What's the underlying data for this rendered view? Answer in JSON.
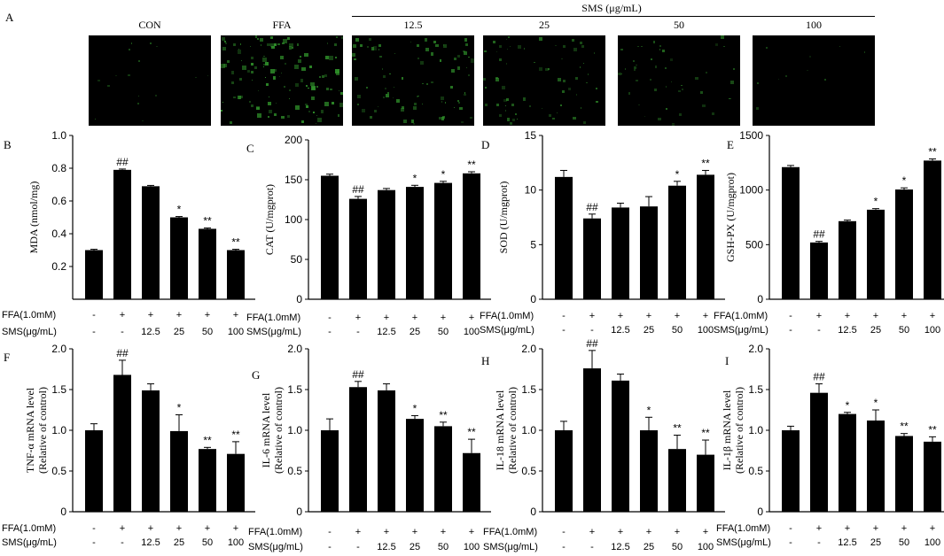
{
  "panel_a": {
    "letter": "A",
    "group_label": "SMS (μg/mL)",
    "images": [
      {
        "label": "CON",
        "intensity": 0.08
      },
      {
        "label": "FFA",
        "intensity": 0.9
      },
      {
        "label": "12.5",
        "intensity": 0.6
      },
      {
        "label": "25",
        "intensity": 0.45
      },
      {
        "label": "50",
        "intensity": 0.3
      },
      {
        "label": "100",
        "intensity": 0.03
      }
    ]
  },
  "row_labels": {
    "ffa": "FFA(1.0mM)",
    "sms": "SMS(μg/mL)",
    "ffa_values": [
      "-",
      "+",
      "+",
      "+",
      "+",
      "+"
    ],
    "sms_values": [
      "-",
      "-",
      "12.5",
      "25",
      "50",
      "100"
    ]
  },
  "chart_data": [
    {
      "panel": "B",
      "type": "bar",
      "ylabel": "MDA (nmol/mg)",
      "ylim": [
        0,
        1.0
      ],
      "yticks": [
        "0.2",
        "0.4",
        "0.6",
        "0.8",
        "1.0"
      ],
      "values": [
        0.3,
        0.79,
        0.69,
        0.5,
        0.43,
        0.3
      ],
      "errors": [
        0.005,
        0.005,
        0.005,
        0.005,
        0.005,
        0.005
      ],
      "annotations": [
        "",
        "##",
        "",
        "*",
        "**",
        "**"
      ]
    },
    {
      "panel": "C",
      "type": "bar",
      "ylabel": "CAT (U/mgprot)",
      "ylim": [
        0,
        200
      ],
      "yticks": [
        "0",
        "50",
        "100",
        "150",
        "200"
      ],
      "values": [
        155,
        126,
        137,
        141,
        146,
        158
      ],
      "errors": [
        2,
        3,
        2,
        2,
        2,
        2
      ],
      "annotations": [
        "",
        "##",
        "",
        "*",
        "*",
        "**"
      ]
    },
    {
      "panel": "D",
      "type": "bar",
      "ylabel": "SOD (U/mgprot)",
      "ylim": [
        0,
        15
      ],
      "yticks": [
        "0",
        "5",
        "10",
        "15"
      ],
      "values": [
        11.2,
        7.4,
        8.4,
        8.5,
        10.4,
        11.4
      ],
      "errors": [
        0.6,
        0.4,
        0.4,
        0.9,
        0.4,
        0.4
      ],
      "annotations": [
        "",
        "##",
        "",
        "",
        "*",
        "**"
      ]
    },
    {
      "panel": "E",
      "type": "bar",
      "ylabel": "GSH-PX (U/mgprot)",
      "ylim": [
        0,
        1500
      ],
      "yticks": [
        "0",
        "500",
        "1000",
        "1500"
      ],
      "values": [
        1210,
        520,
        715,
        820,
        1005,
        1270
      ],
      "errors": [
        15,
        10,
        10,
        10,
        15,
        15
      ],
      "annotations": [
        "",
        "##",
        "",
        "*",
        "*",
        "**"
      ]
    },
    {
      "panel": "F",
      "type": "bar",
      "ylabel": "TNF-α mRNA level (Relative of control)",
      "ylim": [
        0,
        2.0
      ],
      "yticks": [
        "0",
        "0.5",
        "1.0",
        "1.5",
        "2.0"
      ],
      "values": [
        1.0,
        1.68,
        1.49,
        0.99,
        0.77,
        0.71
      ],
      "errors": [
        0.08,
        0.18,
        0.08,
        0.2,
        0.02,
        0.15
      ],
      "annotations": [
        "",
        "##",
        "",
        "*",
        "**",
        "**"
      ]
    },
    {
      "panel": "G",
      "type": "bar",
      "ylabel": "IL-6 mRNA level (Relative of control)",
      "ylim": [
        0,
        2.0
      ],
      "yticks": [
        "0",
        "0.5",
        "1.0",
        "1.5",
        "2.0"
      ],
      "values": [
        1.0,
        1.53,
        1.49,
        1.14,
        1.05,
        0.72
      ],
      "errors": [
        0.14,
        0.07,
        0.08,
        0.04,
        0.05,
        0.17
      ],
      "annotations": [
        "",
        "##",
        "",
        "*",
        "**",
        "**"
      ]
    },
    {
      "panel": "H",
      "type": "bar",
      "ylabel": "IL-18 mRNA level (Relative of control)",
      "ylim": [
        0,
        2.0
      ],
      "yticks": [
        "0",
        "0.5",
        "1.0",
        "1.5",
        "2.0"
      ],
      "values": [
        1.0,
        1.76,
        1.61,
        1.0,
        0.77,
        0.7
      ],
      "errors": [
        0.11,
        0.22,
        0.08,
        0.16,
        0.17,
        0.18
      ],
      "annotations": [
        "",
        "##",
        "",
        "*",
        "**",
        "**"
      ]
    },
    {
      "panel": "I",
      "type": "bar",
      "ylabel": "IL-1β mRNA level (Relative of control)",
      "ylim": [
        0,
        2.0
      ],
      "yticks": [
        "0",
        "0.5",
        "1.0",
        "1.5",
        "2.0"
      ],
      "values": [
        1.0,
        1.46,
        1.2,
        1.12,
        0.93,
        0.86
      ],
      "errors": [
        0.05,
        0.11,
        0.02,
        0.13,
        0.03,
        0.06
      ],
      "annotations": [
        "",
        "##",
        "*",
        "*",
        "**",
        "**"
      ]
    }
  ]
}
